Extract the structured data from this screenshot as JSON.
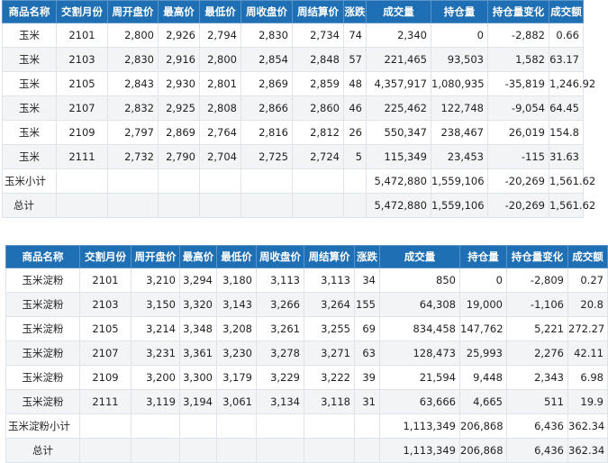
{
  "headers": [
    "商品名称",
    "交割月份",
    "周开盘价",
    "最高价",
    "最低价",
    "周收盘价",
    "周结算价",
    "涨跌",
    "成交量",
    "持仓量",
    "持仓量变化",
    "成交额"
  ],
  "corn": {
    "rows": [
      [
        "玉米",
        "2101",
        "2,800",
        "2,926",
        "2,794",
        "2,830",
        "2,734",
        "74",
        "2,340",
        "0",
        "-2,882",
        "0.66"
      ],
      [
        "玉米",
        "2103",
        "2,830",
        "2,916",
        "2,800",
        "2,854",
        "2,848",
        "57",
        "221,465",
        "93,503",
        "1,582",
        "63.17"
      ],
      [
        "玉米",
        "2105",
        "2,843",
        "2,930",
        "2,801",
        "2,869",
        "2,859",
        "48",
        "4,357,917",
        "1,080,935",
        "-35,819",
        "1,246.92"
      ],
      [
        "玉米",
        "2107",
        "2,832",
        "2,925",
        "2,808",
        "2,866",
        "2,860",
        "46",
        "225,462",
        "122,748",
        "-9,054",
        "64.45"
      ],
      [
        "玉米",
        "2109",
        "2,797",
        "2,869",
        "2,764",
        "2,816",
        "2,812",
        "26",
        "550,347",
        "238,467",
        "26,019",
        "154.8"
      ],
      [
        "玉米",
        "2111",
        "2,732",
        "2,790",
        "2,704",
        "2,725",
        "2,724",
        "5",
        "115,349",
        "23,453",
        "-115",
        "31.63"
      ]
    ],
    "subtotal": {
      "label": "玉米小计",
      "volume": "5,472,880",
      "oi": "1,559,106",
      "oi_change": "-20,269",
      "turnover": "1,561.62"
    },
    "total": {
      "label": "总计",
      "volume": "5,472,880",
      "oi": "1,559,106",
      "oi_change": "-20,269",
      "turnover": "1,561.62"
    }
  },
  "starch": {
    "rows": [
      [
        "玉米淀粉",
        "2101",
        "3,210",
        "3,294",
        "3,180",
        "3,113",
        "3,113",
        "34",
        "850",
        "0",
        "-2,809",
        "0.27"
      ],
      [
        "玉米淀粉",
        "2103",
        "3,150",
        "3,320",
        "3,143",
        "3,266",
        "3,264",
        "155",
        "64,308",
        "19,000",
        "-1,106",
        "20.8"
      ],
      [
        "玉米淀粉",
        "2105",
        "3,214",
        "3,348",
        "3,208",
        "3,261",
        "3,255",
        "69",
        "834,458",
        "147,762",
        "5,221",
        "272.27"
      ],
      [
        "玉米淀粉",
        "2107",
        "3,231",
        "3,361",
        "3,230",
        "3,278",
        "3,271",
        "63",
        "128,473",
        "25,993",
        "2,276",
        "42.11"
      ],
      [
        "玉米淀粉",
        "2109",
        "3,200",
        "3,300",
        "3,179",
        "3,229",
        "3,222",
        "39",
        "21,594",
        "9,448",
        "2,343",
        "6.98"
      ],
      [
        "玉米淀粉",
        "2111",
        "3,119",
        "3,194",
        "3,061",
        "3,134",
        "3,118",
        "31",
        "63,666",
        "4,665",
        "511",
        "19.9"
      ]
    ],
    "subtotal": {
      "label": "玉米淀粉小计",
      "volume": "1,113,349",
      "oi": "206,868",
      "oi_change": "6,436",
      "turnover": "362.34"
    },
    "total": {
      "label": "总计",
      "volume": "1,113,349",
      "oi": "206,868",
      "oi_change": "6,436",
      "turnover": "362.34"
    }
  }
}
